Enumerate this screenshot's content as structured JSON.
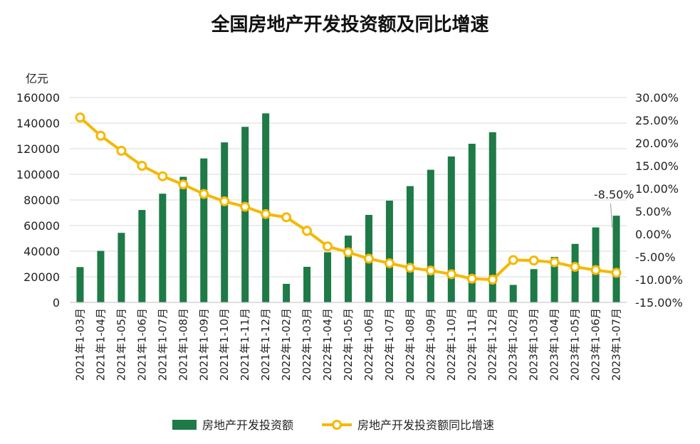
{
  "chart_data": {
    "type": "bar",
    "title": "全国房地产开发投资额及同比增速",
    "ylabel_left": "亿元",
    "categories": [
      "2021年1-03月",
      "2021年1-04月",
      "2021年1-05月",
      "2021年1-06月",
      "2021年1-07月",
      "2021年1-08月",
      "2021年1-09月",
      "2021年1-10月",
      "2021年1-11月",
      "2021年1-12月",
      "2022年1-02月",
      "2022年1-03月",
      "2022年1-04月",
      "2022年1-05月",
      "2022年1-06月",
      "2022年1-07月",
      "2022年1-08月",
      "2022年1-09月",
      "2022年1-10月",
      "2022年1-11月",
      "2022年1-12月",
      "2023年1-02月",
      "2023年1-03月",
      "2023年1-04月",
      "2023年1-05月",
      "2023年1-06月",
      "2023年1-07月"
    ],
    "series": [
      {
        "name": "房地产开发投资额",
        "type": "bar",
        "axis": "left",
        "color": "#1e7a46",
        "values": [
          27576,
          40240,
          54318,
          72179,
          84895,
          98060,
          112388,
          124934,
          137086,
          147602,
          14499,
          27765,
          39154,
          52134,
          68314,
          79462,
          90809,
          103559,
          113945,
          123863,
          132895,
          13669,
          25974,
          35514,
          45701,
          58550,
          67717
        ]
      },
      {
        "name": "房地产开发投资额同比增速",
        "type": "line",
        "axis": "right",
        "color": "#f5b800",
        "values": [
          25.6,
          21.6,
          18.3,
          15.0,
          12.7,
          10.9,
          8.8,
          7.2,
          6.0,
          4.4,
          3.7,
          0.7,
          -2.7,
          -4.0,
          -5.4,
          -6.4,
          -7.4,
          -8.0,
          -8.8,
          -9.8,
          -10.0,
          -5.7,
          -5.8,
          -6.2,
          -7.2,
          -7.9,
          -8.5
        ]
      }
    ],
    "y_left": {
      "min": 0,
      "max": 160000,
      "ticks": [
        "0",
        "20000",
        "40000",
        "60000",
        "80000",
        "100000",
        "120000",
        "140000",
        "160000"
      ]
    },
    "y_right": {
      "min": -15,
      "max": 30,
      "ticks": [
        "-15.00%",
        "-10.00%",
        "-5.00%",
        "0.00%",
        "5.00%",
        "10.00%",
        "15.00%",
        "20.00%",
        "25.00%",
        "30.00%"
      ]
    },
    "annotation": "-8.50%",
    "grid": true,
    "legend_position": "bottom"
  }
}
